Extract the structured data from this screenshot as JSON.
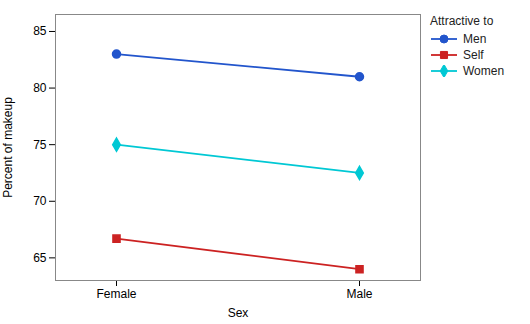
{
  "chart_data": {
    "type": "line",
    "categories": [
      "Female",
      "Male"
    ],
    "series": [
      {
        "name": "Men",
        "color": "#2255cc",
        "marker": "circle",
        "values": [
          83.0,
          81.0
        ]
      },
      {
        "name": "Self",
        "color": "#cc2222",
        "marker": "square",
        "values": [
          66.7,
          64.0
        ]
      },
      {
        "name": "Women",
        "color": "#00c8d4",
        "marker": "diamond",
        "values": [
          75.0,
          72.5
        ]
      }
    ],
    "xlabel": "Sex",
    "ylabel": "Percent of makeup",
    "ylim": [
      63.0,
      86.5
    ],
    "yticks": [
      65,
      70,
      75,
      80,
      85
    ],
    "legend_title": "Attractive to",
    "legend": "upper right",
    "grid": false
  }
}
